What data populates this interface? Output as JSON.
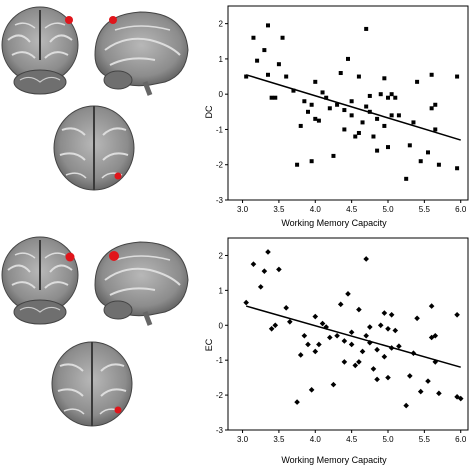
{
  "colors": {
    "background": "#ffffff",
    "brain_gray": "#8c8c8c",
    "brain_dark": "#3a3a3a",
    "activation_red": "#e0151b",
    "marker": "#000000"
  },
  "brain_panels": [
    {
      "row": "top",
      "views": [
        "coronal",
        "sagittal",
        "axial"
      ]
    },
    {
      "row": "bottom",
      "views": [
        "coronal",
        "sagittal",
        "axial"
      ]
    }
  ],
  "chart_data": [
    {
      "type": "scatter",
      "marker": "square",
      "xlabel": "Working Memory Capacity",
      "ylabel": "DC",
      "xlim": [
        2.8,
        6.1
      ],
      "ylim": [
        -3,
        2.5
      ],
      "xticks": [
        3.0,
        3.5,
        4.0,
        4.5,
        5.0,
        5.5,
        6.0
      ],
      "yticks": [
        -3,
        -2,
        -1,
        0,
        1,
        2
      ],
      "grid": false,
      "trendline": {
        "x": [
          3.05,
          6.0
        ],
        "y": [
          0.55,
          -1.3
        ]
      },
      "points": [
        [
          3.05,
          0.5
        ],
        [
          3.15,
          1.6
        ],
        [
          3.2,
          0.95
        ],
        [
          3.3,
          1.25
        ],
        [
          3.35,
          1.95
        ],
        [
          3.35,
          0.55
        ],
        [
          3.4,
          -0.1
        ],
        [
          3.45,
          -0.1
        ],
        [
          3.5,
          0.85
        ],
        [
          3.55,
          1.6
        ],
        [
          3.6,
          0.5
        ],
        [
          3.7,
          0.1
        ],
        [
          3.75,
          -2.0
        ],
        [
          3.8,
          -0.9
        ],
        [
          3.85,
          -0.2
        ],
        [
          3.9,
          -0.5
        ],
        [
          3.95,
          -1.9
        ],
        [
          3.95,
          -0.3
        ],
        [
          4.0,
          0.35
        ],
        [
          4.0,
          -0.7
        ],
        [
          4.05,
          -0.75
        ],
        [
          4.1,
          0.05
        ],
        [
          4.15,
          -0.1
        ],
        [
          4.2,
          -0.4
        ],
        [
          4.25,
          -1.75
        ],
        [
          4.3,
          -0.3
        ],
        [
          4.35,
          0.6
        ],
        [
          4.4,
          -0.45
        ],
        [
          4.4,
          -1.0
        ],
        [
          4.45,
          1.0
        ],
        [
          4.5,
          -0.6
        ],
        [
          4.5,
          -0.2
        ],
        [
          4.55,
          -1.2
        ],
        [
          4.6,
          -1.1
        ],
        [
          4.6,
          0.5
        ],
        [
          4.65,
          -0.8
        ],
        [
          4.7,
          -0.35
        ],
        [
          4.7,
          1.85
        ],
        [
          4.75,
          -0.05
        ],
        [
          4.75,
          -0.5
        ],
        [
          4.8,
          -1.2
        ],
        [
          4.85,
          -0.7
        ],
        [
          4.85,
          -1.6
        ],
        [
          4.9,
          0.0
        ],
        [
          4.95,
          0.45
        ],
        [
          4.95,
          -0.9
        ],
        [
          5.0,
          -0.1
        ],
        [
          5.0,
          -1.5
        ],
        [
          5.05,
          0.0
        ],
        [
          5.05,
          -0.6
        ],
        [
          5.1,
          -0.1
        ],
        [
          5.15,
          -0.6
        ],
        [
          5.25,
          -2.4
        ],
        [
          5.3,
          -1.45
        ],
        [
          5.35,
          -0.8
        ],
        [
          5.4,
          0.35
        ],
        [
          5.45,
          -1.9
        ],
        [
          5.55,
          -1.65
        ],
        [
          5.6,
          0.55
        ],
        [
          5.6,
          -0.4
        ],
        [
          5.65,
          -0.3
        ],
        [
          5.65,
          -1.0
        ],
        [
          5.7,
          -2.0
        ],
        [
          5.95,
          0.5
        ],
        [
          5.95,
          -2.1
        ]
      ]
    },
    {
      "type": "scatter",
      "marker": "diamond",
      "xlabel": "Working Memory Capacity",
      "ylabel": "EC",
      "xlim": [
        2.8,
        6.1
      ],
      "ylim": [
        -3,
        2.5
      ],
      "xticks": [
        3.0,
        3.5,
        4.0,
        4.5,
        5.0,
        5.5,
        6.0
      ],
      "yticks": [
        -3,
        -2,
        -1,
        0,
        1,
        2
      ],
      "grid": false,
      "trendline": {
        "x": [
          3.05,
          6.0
        ],
        "y": [
          0.55,
          -1.2
        ]
      },
      "points": [
        [
          3.05,
          0.65
        ],
        [
          3.15,
          1.75
        ],
        [
          3.25,
          1.1
        ],
        [
          3.3,
          1.55
        ],
        [
          3.35,
          2.1
        ],
        [
          3.4,
          -0.1
        ],
        [
          3.45,
          0.0
        ],
        [
          3.5,
          1.6
        ],
        [
          3.6,
          0.5
        ],
        [
          3.65,
          0.1
        ],
        [
          3.75,
          -2.2
        ],
        [
          3.8,
          -0.85
        ],
        [
          3.85,
          -0.3
        ],
        [
          3.9,
          -0.55
        ],
        [
          3.95,
          -1.85
        ],
        [
          4.0,
          0.25
        ],
        [
          4.0,
          -0.75
        ],
        [
          4.05,
          -0.55
        ],
        [
          4.1,
          0.05
        ],
        [
          4.15,
          -0.05
        ],
        [
          4.2,
          -0.35
        ],
        [
          4.25,
          -1.7
        ],
        [
          4.3,
          -0.3
        ],
        [
          4.35,
          0.6
        ],
        [
          4.4,
          -0.45
        ],
        [
          4.4,
          -1.05
        ],
        [
          4.45,
          0.9
        ],
        [
          4.5,
          -0.55
        ],
        [
          4.5,
          -0.2
        ],
        [
          4.55,
          -1.15
        ],
        [
          4.6,
          -1.05
        ],
        [
          4.6,
          0.45
        ],
        [
          4.65,
          -0.75
        ],
        [
          4.7,
          -0.3
        ],
        [
          4.7,
          1.9
        ],
        [
          4.75,
          -0.05
        ],
        [
          4.75,
          -0.5
        ],
        [
          4.8,
          -1.25
        ],
        [
          4.85,
          -0.7
        ],
        [
          4.85,
          -1.55
        ],
        [
          4.9,
          0.0
        ],
        [
          4.95,
          0.35
        ],
        [
          4.95,
          -0.9
        ],
        [
          5.0,
          -0.1
        ],
        [
          5.0,
          -1.5
        ],
        [
          5.05,
          0.3
        ],
        [
          5.05,
          -0.65
        ],
        [
          5.1,
          -0.15
        ],
        [
          5.15,
          -0.6
        ],
        [
          5.25,
          -2.3
        ],
        [
          5.3,
          -1.45
        ],
        [
          5.35,
          -0.8
        ],
        [
          5.4,
          0.2
        ],
        [
          5.45,
          -1.9
        ],
        [
          5.55,
          -1.6
        ],
        [
          5.6,
          0.55
        ],
        [
          5.6,
          -0.35
        ],
        [
          5.65,
          -0.3
        ],
        [
          5.65,
          -1.05
        ],
        [
          5.7,
          -1.95
        ],
        [
          5.95,
          0.3
        ],
        [
          5.95,
          -2.05
        ],
        [
          6.0,
          -2.1
        ]
      ]
    }
  ]
}
